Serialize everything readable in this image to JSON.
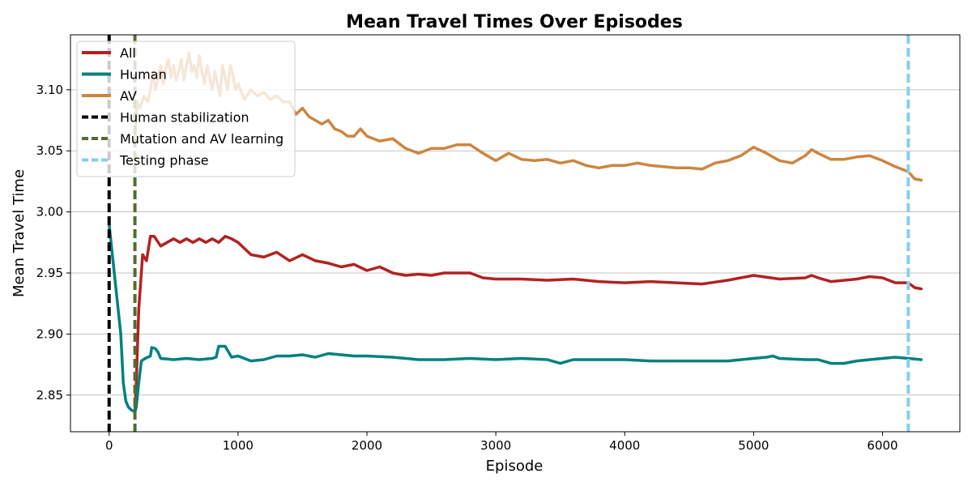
{
  "chart_data": {
    "type": "line",
    "title": "Mean Travel Times Over Episodes",
    "xlabel": "Episode",
    "ylabel": "Mean Travel Time",
    "xlim": [
      -300,
      6600
    ],
    "ylim": [
      2.82,
      3.145
    ],
    "xticks": [
      0,
      1000,
      2000,
      3000,
      4000,
      5000,
      6000
    ],
    "yticks": [
      2.85,
      2.9,
      2.95,
      3.0,
      3.05,
      3.1
    ],
    "ytick_labels": [
      "2.85",
      "2.90",
      "2.95",
      "3.00",
      "3.05",
      "3.10"
    ],
    "grid": "horizontal",
    "legend_position": "top-left",
    "series": [
      {
        "name": "All",
        "color": "#b22222",
        "x": [
          200,
          210,
          230,
          260,
          290,
          320,
          350,
          400,
          450,
          500,
          550,
          600,
          650,
          700,
          750,
          800,
          850,
          900,
          950,
          1000,
          1100,
          1200,
          1300,
          1400,
          1500,
          1600,
          1700,
          1800,
          1900,
          2000,
          2100,
          2200,
          2300,
          2400,
          2500,
          2600,
          2700,
          2800,
          2900,
          3000,
          3200,
          3400,
          3600,
          3800,
          4000,
          4200,
          4400,
          4600,
          4800,
          5000,
          5200,
          5400,
          5450,
          5500,
          5600,
          5800,
          5900,
          6000,
          6100,
          6200,
          6250,
          6300
        ],
        "y": [
          2.835,
          2.86,
          2.92,
          2.965,
          2.96,
          2.98,
          2.98,
          2.972,
          2.975,
          2.978,
          2.975,
          2.978,
          2.975,
          2.978,
          2.975,
          2.978,
          2.975,
          2.98,
          2.978,
          2.975,
          2.965,
          2.963,
          2.967,
          2.96,
          2.965,
          2.96,
          2.958,
          2.955,
          2.957,
          2.952,
          2.955,
          2.95,
          2.948,
          2.949,
          2.948,
          2.95,
          2.95,
          2.95,
          2.946,
          2.945,
          2.945,
          2.944,
          2.945,
          2.943,
          2.942,
          2.943,
          2.942,
          2.941,
          2.944,
          2.948,
          2.945,
          2.946,
          2.948,
          2.946,
          2.943,
          2.945,
          2.947,
          2.946,
          2.942,
          2.942,
          2.938,
          2.937
        ]
      },
      {
        "name": "Human",
        "color": "#008080",
        "x": [
          0,
          10,
          30,
          60,
          90,
          110,
          130,
          150,
          170,
          190,
          200,
          210,
          230,
          250,
          280,
          320,
          330,
          360,
          380,
          400,
          500,
          600,
          700,
          800,
          830,
          850,
          900,
          950,
          1000,
          1100,
          1200,
          1300,
          1400,
          1500,
          1600,
          1700,
          1800,
          1900,
          2000,
          2200,
          2400,
          2600,
          2800,
          3000,
          3200,
          3400,
          3500,
          3600,
          3800,
          4000,
          4200,
          4400,
          4600,
          4800,
          5000,
          5100,
          5150,
          5200,
          5400,
          5500,
          5600,
          5700,
          5800,
          5900,
          6000,
          6100,
          6200,
          6300
        ],
        "y": [
          2.99,
          2.98,
          2.96,
          2.93,
          2.9,
          2.86,
          2.845,
          2.84,
          2.838,
          2.837,
          2.836,
          2.84,
          2.86,
          2.878,
          2.88,
          2.882,
          2.889,
          2.888,
          2.885,
          2.88,
          2.879,
          2.88,
          2.879,
          2.88,
          2.881,
          2.89,
          2.89,
          2.881,
          2.882,
          2.878,
          2.879,
          2.882,
          2.882,
          2.883,
          2.881,
          2.884,
          2.883,
          2.882,
          2.882,
          2.881,
          2.879,
          2.879,
          2.88,
          2.879,
          2.88,
          2.879,
          2.876,
          2.879,
          2.879,
          2.879,
          2.878,
          2.878,
          2.878,
          2.878,
          2.88,
          2.881,
          2.882,
          2.88,
          2.879,
          2.879,
          2.876,
          2.876,
          2.878,
          2.879,
          2.88,
          2.881,
          2.88,
          2.879
        ]
      },
      {
        "name": "AV",
        "color": "#cd853f",
        "x": [
          200,
          210,
          220,
          240,
          270,
          300,
          320,
          340,
          360,
          380,
          400,
          420,
          440,
          460,
          480,
          500,
          520,
          540,
          560,
          580,
          600,
          620,
          640,
          660,
          680,
          700,
          720,
          740,
          760,
          780,
          800,
          820,
          840,
          860,
          880,
          900,
          920,
          940,
          960,
          980,
          1000,
          1050,
          1100,
          1150,
          1200,
          1250,
          1300,
          1350,
          1400,
          1450,
          1500,
          1550,
          1600,
          1650,
          1700,
          1750,
          1800,
          1850,
          1900,
          1950,
          2000,
          2100,
          2200,
          2300,
          2400,
          2500,
          2600,
          2700,
          2800,
          2900,
          3000,
          3100,
          3200,
          3300,
          3400,
          3500,
          3600,
          3700,
          3800,
          3900,
          4000,
          4100,
          4200,
          4300,
          4400,
          4500,
          4600,
          4700,
          4800,
          4900,
          5000,
          5100,
          5200,
          5300,
          5400,
          5450,
          5500,
          5600,
          5700,
          5800,
          5900,
          6000,
          6100,
          6200,
          6250,
          6300
        ],
        "y": [
          3.06,
          3.08,
          3.09,
          3.085,
          3.095,
          3.09,
          3.1,
          3.115,
          3.1,
          3.11,
          3.12,
          3.105,
          3.118,
          3.125,
          3.11,
          3.12,
          3.108,
          3.115,
          3.125,
          3.108,
          3.12,
          3.13,
          3.115,
          3.12,
          3.11,
          3.128,
          3.115,
          3.105,
          3.12,
          3.11,
          3.1,
          3.115,
          3.105,
          3.095,
          3.12,
          3.11,
          3.1,
          3.12,
          3.112,
          3.1,
          3.105,
          3.092,
          3.1,
          3.095,
          3.098,
          3.092,
          3.095,
          3.09,
          3.09,
          3.08,
          3.085,
          3.078,
          3.075,
          3.072,
          3.075,
          3.068,
          3.066,
          3.062,
          3.062,
          3.068,
          3.062,
          3.058,
          3.06,
          3.052,
          3.048,
          3.052,
          3.052,
          3.055,
          3.055,
          3.048,
          3.042,
          3.048,
          3.043,
          3.042,
          3.043,
          3.04,
          3.042,
          3.038,
          3.036,
          3.038,
          3.038,
          3.04,
          3.038,
          3.037,
          3.036,
          3.036,
          3.035,
          3.04,
          3.042,
          3.046,
          3.053,
          3.048,
          3.042,
          3.04,
          3.046,
          3.051,
          3.048,
          3.043,
          3.043,
          3.045,
          3.046,
          3.042,
          3.037,
          3.033,
          3.027,
          3.026
        ]
      }
    ],
    "vlines": [
      {
        "name": "Human stabilization",
        "x": 0,
        "color": "#000000",
        "style": "dashed"
      },
      {
        "name": "Mutation and AV learning",
        "x": 200,
        "color": "#556b2f",
        "style": "dashed"
      },
      {
        "name": "Testing phase",
        "x": 6200,
        "color": "#87ceeb",
        "style": "dashed"
      }
    ],
    "legend": [
      "All",
      "Human",
      "AV",
      "Human stabilization",
      "Mutation and AV learning",
      "Testing phase"
    ]
  }
}
